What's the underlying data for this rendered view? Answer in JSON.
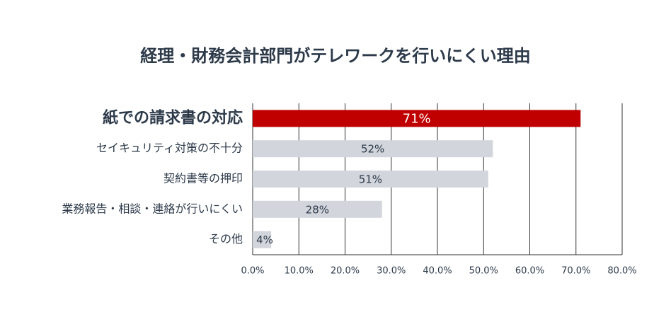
{
  "chart_data": {
    "type": "hbar",
    "title": "経理・財務会計部門がテレワークを行いにくい理由",
    "categories": [
      "紙での請求書の対応",
      "セイキュリティ対策の不十分",
      "契約書等の押印",
      "業務報告・相談・連絡が行いにくい",
      "その他"
    ],
    "values": [
      71,
      52,
      51,
      28,
      4
    ],
    "value_labels": [
      "71%",
      "52%",
      "51%",
      "28%",
      "4%"
    ],
    "colors": [
      "#c00000",
      "#d2d5db",
      "#d2d5db",
      "#d2d5db",
      "#d2d5db"
    ],
    "highlight": 0,
    "xlim": [
      0,
      80
    ],
    "xticks": [
      {
        "value": 0,
        "label": "0.0%"
      },
      {
        "value": 10,
        "label": "10.0%"
      },
      {
        "value": 20,
        "label": "20.0%"
      },
      {
        "value": 30,
        "label": "30.0%"
      },
      {
        "value": 40,
        "label": "40.0%"
      },
      {
        "value": 50,
        "label": "50.0%"
      },
      {
        "value": 60,
        "label": "60.0%"
      },
      {
        "value": 70,
        "label": "70.0%"
      },
      {
        "value": 80,
        "label": "80.0%"
      }
    ],
    "grid": true
  }
}
